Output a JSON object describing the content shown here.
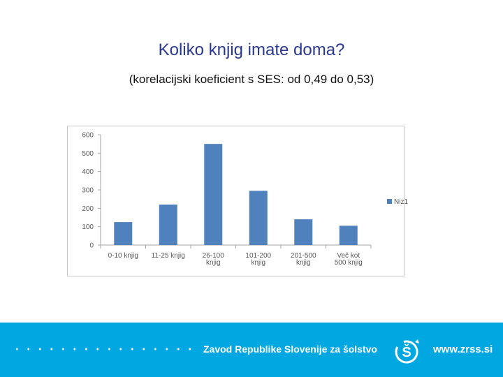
{
  "slide": {
    "title": "Koliko knjig imate doma?",
    "subtitle": "(korelacijski koeficient s SES: od 0,49 do 0,53)"
  },
  "footer": {
    "org_name": "Zavod Republike Slovenije za šolstvo",
    "url": "www.zrss.si",
    "background_color": "#00a7e1"
  },
  "chart_data": {
    "type": "bar",
    "categories": [
      [
        "0-10 knjig"
      ],
      [
        "11-25 knjig"
      ],
      [
        "26-100",
        "knjig"
      ],
      [
        "101-200",
        "knjig"
      ],
      [
        "201-500",
        "knjig"
      ],
      [
        "Več kot",
        "500 knjig"
      ]
    ],
    "series": [
      {
        "name": "Niz1",
        "values": [
          125,
          220,
          550,
          295,
          140,
          105
        ],
        "color": "#4f81bd"
      }
    ],
    "yticks": [
      "0",
      "100",
      "200",
      "300",
      "400",
      "500",
      "600"
    ],
    "ylim": [
      0,
      600
    ],
    "grid": false,
    "legend": "right"
  }
}
